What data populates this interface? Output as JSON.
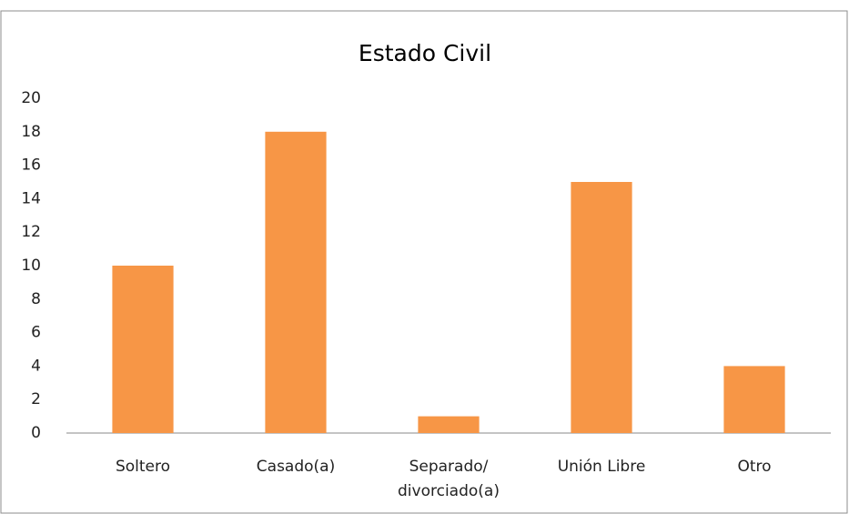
{
  "chart_data": {
    "type": "bar",
    "title": "Estado Civil",
    "categories": [
      "Soltero",
      "Casado(a)",
      "Separado/ divorciado(a)",
      "Unión Libre",
      "Otro"
    ],
    "values": [
      10,
      18,
      1,
      15,
      4
    ],
    "color": "#f79646",
    "ylim": [
      0,
      20
    ],
    "yticks": [
      0,
      2,
      4,
      6,
      8,
      10,
      12,
      14,
      16,
      18,
      20
    ],
    "grid": false
  }
}
